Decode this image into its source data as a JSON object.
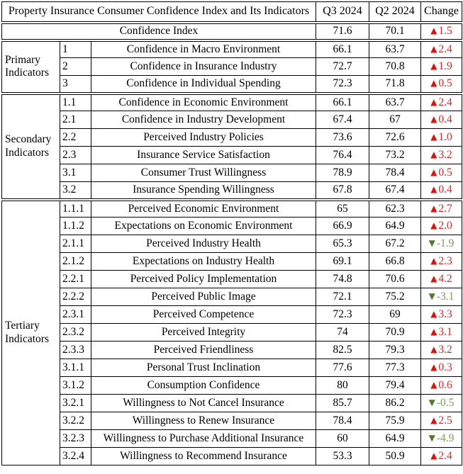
{
  "title": "Property Insurance Consumer Confidence Index and Its Indicators",
  "columns": {
    "q3": "Q3 2024",
    "q2": "Q2 2024",
    "change": "Change"
  },
  "summary": {
    "label": "Confidence Index",
    "q3": "71.6",
    "q2": "70.1",
    "change": "1.5",
    "dir": "up"
  },
  "groups": [
    {
      "label": "Primary Indicators",
      "rows": [
        {
          "code": "1",
          "name": "Confidence in Macro Environment",
          "q3": "66.1",
          "q2": "63.7",
          "change": "2.4",
          "dir": "up"
        },
        {
          "code": "2",
          "name": "Confidence in Insurance Industry",
          "q3": "72.7",
          "q2": "70.8",
          "change": "1.9",
          "dir": "up"
        },
        {
          "code": "3",
          "name": "Confidence in Individual Spending",
          "q3": "72.3",
          "q2": "71.8",
          "change": "0.5",
          "dir": "up"
        }
      ]
    },
    {
      "label": "Secondary Indicators",
      "rows": [
        {
          "code": "1.1",
          "name": "Confidence in Economic Environment",
          "q3": "66.1",
          "q2": "63.7",
          "change": "2.4",
          "dir": "up"
        },
        {
          "code": "2.1",
          "name": "Confidence in Industry Development",
          "q3": "67.4",
          "q2": "67",
          "change": "0.4",
          "dir": "up"
        },
        {
          "code": "2.2",
          "name": "Perceived Industry Policies",
          "q3": "73.6",
          "q2": "72.6",
          "change": "1.0",
          "dir": "up"
        },
        {
          "code": "2.3",
          "name": "Insurance Service Satisfaction",
          "q3": "76.4",
          "q2": "73.2",
          "change": "3.2",
          "dir": "up"
        },
        {
          "code": "3.1",
          "name": "Consumer Trust Willingness",
          "q3": "78.9",
          "q2": "78.4",
          "change": "0.5",
          "dir": "up"
        },
        {
          "code": "3.2",
          "name": "Insurance Spending Willingness",
          "q3": "67.8",
          "q2": "67.4",
          "change": "0.4",
          "dir": "up"
        }
      ]
    },
    {
      "label": "Tertiary Indicators",
      "rows": [
        {
          "code": "1.1.1",
          "name": "Perceived Economic Environment",
          "q3": "65",
          "q2": "62.3",
          "change": "2.7",
          "dir": "up"
        },
        {
          "code": "1.1.2",
          "name": "Expectations on Economic Environment",
          "q3": "66.9",
          "q2": "64.9",
          "change": "2.0",
          "dir": "up"
        },
        {
          "code": "2.1.1",
          "name": "Perceived Industry Health",
          "q3": "65.3",
          "q2": "67.2",
          "change": "-1.9",
          "dir": "down"
        },
        {
          "code": "2.1.2",
          "name": "Expectations on Industry Health",
          "q3": "69.1",
          "q2": "66.8",
          "change": "2.3",
          "dir": "up"
        },
        {
          "code": "2.2.1",
          "name": "Perceived Policy Implementation",
          "q3": "74.8",
          "q2": "70.6",
          "change": "4.2",
          "dir": "up"
        },
        {
          "code": "2.2.2",
          "name": "Perceived Public Image",
          "q3": "72.1",
          "q2": "75.2",
          "change": "-3.1",
          "dir": "down"
        },
        {
          "code": "2.3.1",
          "name": "Perceived Competence",
          "q3": "72.3",
          "q2": "69",
          "change": "3.3",
          "dir": "up"
        },
        {
          "code": "2.3.2",
          "name": "Perceived Integrity",
          "q3": "74",
          "q2": "70.9",
          "change": "3.1",
          "dir": "up"
        },
        {
          "code": "2.3.3",
          "name": "Perceived Friendliness",
          "q3": "82.5",
          "q2": "79.3",
          "change": "3.2",
          "dir": "up"
        },
        {
          "code": "3.1.1",
          "name": "Personal Trust Inclination",
          "q3": "77.6",
          "q2": "77.3",
          "change": "0.3",
          "dir": "up"
        },
        {
          "code": "3.1.2",
          "name": "Consumption Confidence",
          "q3": "80",
          "q2": "79.4",
          "change": "0.6",
          "dir": "up"
        },
        {
          "code": "3.2.1",
          "name": "Willingness to Not Cancel Insurance",
          "q3": "85.7",
          "q2": "86.2",
          "change": "-0.5",
          "dir": "down"
        },
        {
          "code": "3.2.2",
          "name": "Willingness to Renew Insurance",
          "q3": "78.4",
          "q2": "75.9",
          "change": "2.5",
          "dir": "up"
        },
        {
          "code": "3.2.3",
          "name": "Willingness to Purchase Additional Insurance",
          "q3": "60",
          "q2": "64.9",
          "change": "-4.9",
          "dir": "down"
        },
        {
          "code": "3.2.4",
          "name": "Willingness to Recommend Insurance",
          "q3": "53.3",
          "q2": "50.9",
          "change": "2.4",
          "dir": "up"
        }
      ]
    }
  ],
  "icons": {
    "up": "▲",
    "down": "▼"
  },
  "colors": {
    "up_arrow": "#e60d0d",
    "up_text": "#f22020",
    "down_arrow": "#4e7a2e",
    "down_text": "#74a058",
    "border": "#000000"
  }
}
